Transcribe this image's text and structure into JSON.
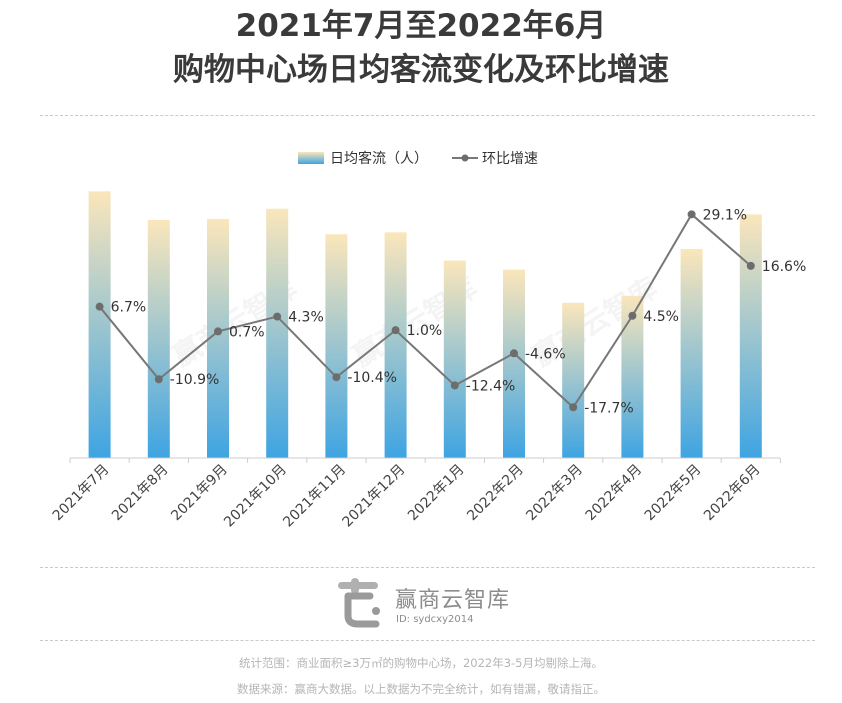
{
  "header": {
    "title_line1": "2021年7月至2022年6月",
    "title_line2": "购物中心场日均客流变化及环比增速"
  },
  "chart_data": {
    "type": "bar+line",
    "categories": [
      "2021年7月",
      "2021年8月",
      "2021年9月",
      "2021年10月",
      "2021年11月",
      "2021年12月",
      "2022年1月",
      "2022年2月",
      "2022年3月",
      "2022年4月",
      "2022年5月",
      "2022年6月"
    ],
    "series": [
      {
        "name": "日均客流（人）",
        "type": "bar",
        "values": [
          9950,
          8880,
          8920,
          9300,
          8350,
          8420,
          7370,
          7030,
          5790,
          6050,
          7800,
          9090
        ]
      },
      {
        "name": "环比增速",
        "type": "line",
        "values": [
          6.7,
          -10.9,
          0.7,
          4.3,
          -10.4,
          1.0,
          -12.4,
          -4.6,
          -17.7,
          4.5,
          29.1,
          16.6
        ],
        "labels": [
          "6.7%",
          "-10.9%",
          "0.7%",
          "4.3%",
          "-10.4%",
          "1.0%",
          "-12.4%",
          "-4.6%",
          "-17.7%",
          "4.5%",
          "29.1%",
          "16.6%"
        ]
      }
    ],
    "bar_ylim": [
      0,
      10000
    ],
    "line_ylim": [
      -30,
      35
    ],
    "legend": "top-center",
    "grid": false,
    "colors": {
      "bar_top": "#fbe6bb",
      "bar_bottom": "#3ea4e2",
      "line": "#777777",
      "marker": "#6d6d6d"
    }
  },
  "watermark": "赢商云智库",
  "footer": {
    "brand": "赢商云智库",
    "brand_id": "ID: sydcxy2014",
    "note1": "统计范围：商业面积≥3万㎡的购物中心场，2022年3-5月均剔除上海。",
    "note2": "数据来源：赢商大数据。以上数据为不完全统计，如有错漏，敬请指正。"
  }
}
